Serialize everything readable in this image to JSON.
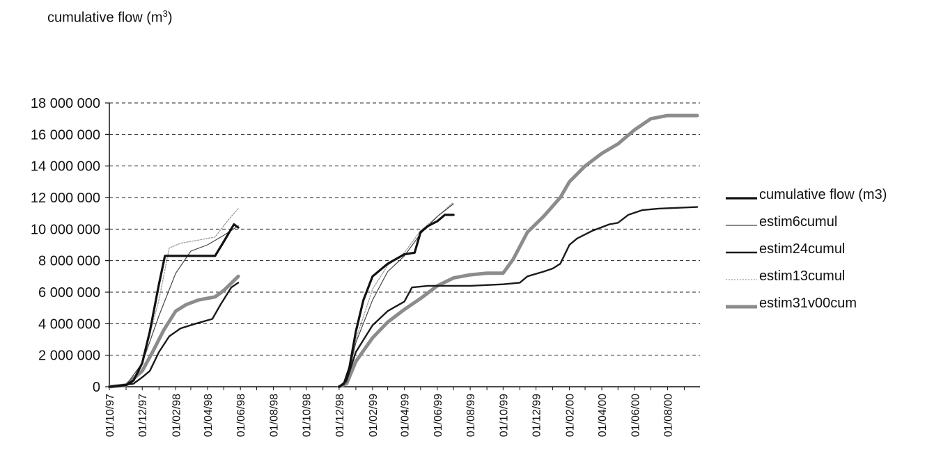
{
  "chart_data": {
    "type": "line",
    "title": "cumulative flow (m",
    "title_superscript": "3",
    "title_close": ")",
    "xlabel": "",
    "ylabel": "",
    "ylim": [
      0,
      18000000
    ],
    "y_ticks": [
      0,
      2000000,
      4000000,
      6000000,
      8000000,
      10000000,
      12000000,
      14000000,
      16000000,
      18000000
    ],
    "y_tick_labels": [
      "0",
      "2 000 000",
      "4 000 000",
      "6 000 000",
      "8 000 000",
      "10 000 000",
      "12 000 000",
      "14 000 000",
      "16 000 000",
      "18 000 000"
    ],
    "xlim": [
      "1997-10-01",
      "2000-09-30"
    ],
    "x_ticks": [
      "1997-10-01",
      "1997-12-01",
      "1998-02-01",
      "1998-04-01",
      "1998-06-01",
      "1998-08-01",
      "1998-10-01",
      "1998-12-01",
      "1999-02-01",
      "1999-04-01",
      "1999-06-01",
      "1999-08-01",
      "1999-10-01",
      "1999-12-01",
      "2000-02-01",
      "2000-04-01",
      "2000-06-01",
      "2000-08-01"
    ],
    "x_tick_labels": [
      "01/10/97",
      "01/12/97",
      "01/02/98",
      "01/04/98",
      "01/06/98",
      "01/08/98",
      "01/10/98",
      "01/12/98",
      "01/02/99",
      "01/04/99",
      "01/06/99",
      "01/08/99",
      "01/10/99",
      "01/12/99",
      "01/02/00",
      "01/04/00",
      "01/06/00",
      "01/08/00"
    ],
    "grid": "horizontal-dashed",
    "legend": "right",
    "series": [
      {
        "name": "cumulative flow (m3)",
        "color": "#111111",
        "style": "solid-thick",
        "segments": [
          [
            [
              "1997-10-01",
              0
            ],
            [
              "1997-11-01",
              100000
            ],
            [
              "1997-11-15",
              400000
            ],
            [
              "1997-12-01",
              1500000
            ],
            [
              "1997-12-15",
              3500000
            ],
            [
              "1998-01-01",
              6500000
            ],
            [
              "1998-01-12",
              8300000
            ],
            [
              "1998-02-01",
              8300000
            ],
            [
              "1998-03-15",
              8300000
            ],
            [
              "1998-04-15",
              8300000
            ],
            [
              "1998-05-01",
              9200000
            ],
            [
              "1998-05-20",
              10300000
            ],
            [
              "1998-05-28",
              10100000
            ]
          ],
          [
            [
              "1998-12-01",
              0
            ],
            [
              "1998-12-10",
              200000
            ],
            [
              "1998-12-20",
              1200000
            ],
            [
              "1999-01-01",
              3500000
            ],
            [
              "1999-01-15",
              5500000
            ],
            [
              "1999-02-01",
              7000000
            ],
            [
              "1999-03-01",
              7800000
            ],
            [
              "1999-04-01",
              8400000
            ],
            [
              "1999-04-20",
              8500000
            ],
            [
              "1999-05-01",
              9800000
            ],
            [
              "1999-05-15",
              10200000
            ],
            [
              "1999-06-01",
              10500000
            ],
            [
              "1999-06-15",
              10900000
            ],
            [
              "1999-07-01",
              10900000
            ]
          ]
        ]
      },
      {
        "name": "estim6cumul",
        "color": "#444444",
        "style": "solid-thin",
        "segments": [
          [
            [
              "1997-10-01",
              0
            ],
            [
              "1997-11-01",
              100000
            ],
            [
              "1997-12-01",
              1500000
            ],
            [
              "1998-01-01",
              4500000
            ],
            [
              "1998-02-01",
              7200000
            ],
            [
              "1998-03-01",
              8600000
            ],
            [
              "1998-04-01",
              9000000
            ],
            [
              "1998-05-01",
              9600000
            ],
            [
              "1998-05-28",
              10200000
            ]
          ],
          [
            [
              "1998-12-01",
              0
            ],
            [
              "1998-12-15",
              300000
            ],
            [
              "1999-01-01",
              2800000
            ],
            [
              "1999-02-01",
              5500000
            ],
            [
              "1999-03-01",
              7300000
            ],
            [
              "1999-04-01",
              8300000
            ],
            [
              "1999-05-01",
              9700000
            ],
            [
              "1999-06-01",
              10800000
            ],
            [
              "1999-07-01",
              11600000
            ]
          ]
        ]
      },
      {
        "name": "estim24cumul",
        "color": "#1a1a1a",
        "style": "solid-medium",
        "segments": [
          [
            [
              "1997-10-01",
              0
            ],
            [
              "1997-11-15",
              200000
            ],
            [
              "1997-12-01",
              600000
            ],
            [
              "1997-12-15",
              1000000
            ],
            [
              "1998-01-01",
              2200000
            ],
            [
              "1998-01-20",
              3200000
            ],
            [
              "1998-02-10",
              3700000
            ],
            [
              "1998-03-10",
              4000000
            ],
            [
              "1998-04-10",
              4300000
            ],
            [
              "1998-04-25",
              5200000
            ],
            [
              "1998-05-15",
              6300000
            ],
            [
              "1998-05-28",
              6600000
            ]
          ],
          [
            [
              "1998-12-01",
              0
            ],
            [
              "1998-12-15",
              400000
            ],
            [
              "1999-01-01",
              2200000
            ],
            [
              "1999-02-01",
              3900000
            ],
            [
              "1999-03-01",
              4800000
            ],
            [
              "1999-04-01",
              5400000
            ],
            [
              "1999-04-15",
              6300000
            ],
            [
              "1999-05-15",
              6400000
            ],
            [
              "1999-06-15",
              6400000
            ],
            [
              "1999-08-01",
              6400000
            ],
            [
              "1999-10-01",
              6500000
            ],
            [
              "1999-11-01",
              6600000
            ],
            [
              "1999-11-15",
              7000000
            ],
            [
              "1999-12-15",
              7300000
            ],
            [
              "2000-01-01",
              7500000
            ],
            [
              "2000-01-15",
              7800000
            ],
            [
              "2000-02-01",
              9000000
            ],
            [
              "2000-02-15",
              9400000
            ],
            [
              "2000-03-15",
              9900000
            ],
            [
              "2000-04-15",
              10300000
            ],
            [
              "2000-05-01",
              10400000
            ],
            [
              "2000-05-20",
              10900000
            ],
            [
              "2000-06-15",
              11200000
            ],
            [
              "2000-07-15",
              11300000
            ],
            [
              "2000-09-25",
              11400000
            ]
          ]
        ]
      },
      {
        "name": "estim13cumul",
        "color": "#9a9a9a",
        "style": "dotted-thin",
        "segments": [
          [
            [
              "1997-10-01",
              0
            ],
            [
              "1997-11-01",
              100000
            ],
            [
              "1997-12-01",
              1500000
            ],
            [
              "1998-01-01",
              5500000
            ],
            [
              "1998-01-20",
              8800000
            ],
            [
              "1998-02-10",
              9100000
            ],
            [
              "1998-03-15",
              9300000
            ],
            [
              "1998-04-15",
              9500000
            ],
            [
              "1998-05-10",
              10600000
            ],
            [
              "1998-05-28",
              11300000
            ]
          ],
          [
            [
              "1998-12-01",
              0
            ],
            [
              "1998-12-15",
              300000
            ],
            [
              "1999-01-01",
              3000000
            ],
            [
              "1999-02-01",
              6200000
            ],
            [
              "1999-03-01",
              7700000
            ],
            [
              "1999-04-01",
              8500000
            ],
            [
              "1999-05-01",
              9900000
            ],
            [
              "1999-06-01",
              10800000
            ],
            [
              "1999-07-01",
              11700000
            ]
          ]
        ]
      },
      {
        "name": "estim31v00cum",
        "color": "#8c8c8c",
        "style": "solid-thick-grey",
        "segments": [
          [
            [
              "1997-10-01",
              0
            ],
            [
              "1997-11-01",
              100000
            ],
            [
              "1997-12-01",
              1000000
            ],
            [
              "1997-12-20",
              2200000
            ],
            [
              "1998-01-10",
              3600000
            ],
            [
              "1998-02-01",
              4800000
            ],
            [
              "1998-02-20",
              5200000
            ],
            [
              "1998-03-15",
              5500000
            ],
            [
              "1998-04-15",
              5700000
            ],
            [
              "1998-05-01",
              6100000
            ],
            [
              "1998-05-28",
              7000000
            ]
          ],
          [
            [
              "1998-12-01",
              0
            ],
            [
              "1998-12-15",
              200000
            ],
            [
              "1999-01-01",
              1600000
            ],
            [
              "1999-02-01",
              3100000
            ],
            [
              "1999-03-01",
              4100000
            ],
            [
              "1999-04-01",
              4900000
            ],
            [
              "1999-05-01",
              5600000
            ],
            [
              "1999-06-01",
              6400000
            ],
            [
              "1999-07-01",
              6900000
            ],
            [
              "1999-08-01",
              7100000
            ],
            [
              "1999-09-01",
              7200000
            ],
            [
              "1999-10-01",
              7200000
            ],
            [
              "1999-10-20",
              8100000
            ],
            [
              "1999-11-15",
              9800000
            ],
            [
              "1999-12-15",
              10800000
            ],
            [
              "2000-01-15",
              12000000
            ],
            [
              "2000-02-01",
              13000000
            ],
            [
              "2000-03-01",
              14000000
            ],
            [
              "2000-04-01",
              14800000
            ],
            [
              "2000-05-01",
              15400000
            ],
            [
              "2000-06-01",
              16300000
            ],
            [
              "2000-07-01",
              17000000
            ],
            [
              "2000-08-01",
              17200000
            ],
            [
              "2000-09-25",
              17200000
            ]
          ]
        ]
      }
    ]
  }
}
